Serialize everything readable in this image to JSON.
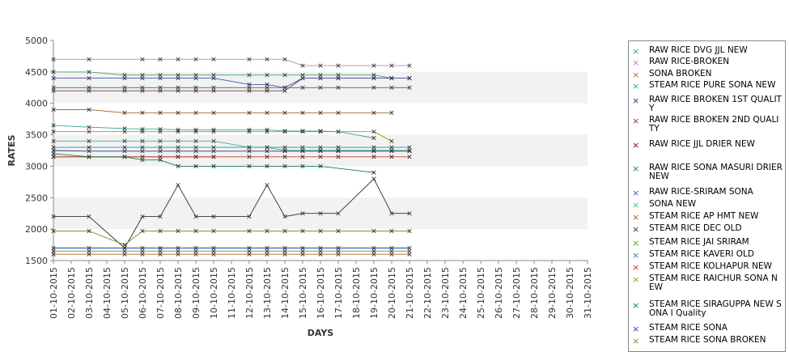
{
  "chart_data": {
    "type": "line",
    "xlabel": "DAYS",
    "ylabel": "RATES",
    "ylim": [
      1500,
      5000
    ],
    "yticks": [
      1500,
      2000,
      2500,
      3000,
      3500,
      4000,
      4500,
      5000
    ],
    "grid": "alternating horizontal bands",
    "legend_position": "right",
    "categories": [
      "01-10-2015",
      "02-10-2015",
      "03-10-2015",
      "04-10-2015",
      "05-10-2015",
      "06-10-2015",
      "07-10-2015",
      "08-10-2015",
      "09-10-2015",
      "10-10-2015",
      "11-10-2015",
      "12-10-2015",
      "13-10-2015",
      "14-10-2015",
      "15-10-2015",
      "16-10-2015",
      "17-10-2015",
      "18-10-2015",
      "19-10-2015",
      "20-10-2015",
      "21-10-2015",
      "22-10-2015",
      "23-10-2015",
      "24-10-2015",
      "25-10-2015",
      "26-10-2015",
      "27-10-2015",
      "28-10-2015",
      "29-10-2015",
      "30-10-2015",
      "31-10-2015"
    ],
    "series": [
      {
        "name": "RAW RICE DVG JJL NEW",
        "color": "#3f9f6f",
        "values": [
          4500,
          null,
          4500,
          null,
          4450,
          4450,
          4450,
          4450,
          4450,
          4450,
          null,
          4450,
          4450,
          4450,
          4450,
          4450,
          4450,
          null,
          4450,
          4400,
          4400,
          null,
          null,
          null,
          null,
          null,
          null,
          null,
          null,
          null,
          null
        ]
      },
      {
        "name": "RAW RICE-BROKEN",
        "color": "#c080c0",
        "values": [
          4700,
          null,
          4700,
          null,
          null,
          4700,
          4700,
          4700,
          4700,
          4700,
          null,
          4700,
          4700,
          4700,
          4600,
          4600,
          4600,
          null,
          4600,
          4600,
          4600,
          null,
          null,
          null,
          null,
          null,
          null,
          null,
          null,
          null,
          null
        ]
      },
      {
        "name": "SONA BROKEN",
        "color": "#a07030",
        "values": [
          3900,
          null,
          3900,
          null,
          3850,
          3850,
          3850,
          3850,
          3850,
          3850,
          null,
          3850,
          3850,
          3850,
          3850,
          3850,
          3850,
          null,
          3850,
          3850,
          null,
          null,
          null,
          null,
          null,
          null,
          null,
          null,
          null,
          null,
          null
        ]
      },
      {
        "name": "STEAM RICE PURE SONA NEW",
        "color": "#30a8a0",
        "values": [
          3650,
          null,
          3620,
          null,
          3600,
          3590,
          3590,
          3580,
          3580,
          3580,
          null,
          3580,
          3580,
          3560,
          3560,
          3560,
          3550,
          null,
          3450,
          null,
          null,
          null,
          null,
          null,
          null,
          null,
          null,
          null,
          null,
          null,
          null
        ]
      },
      {
        "name": "RAW RICE BROKEN 1ST QUALITY",
        "color": "#303080",
        "values": [
          3250,
          null,
          3240,
          null,
          3240,
          3240,
          3240,
          3240,
          3240,
          3240,
          null,
          3240,
          3240,
          3240,
          3240,
          3240,
          3240,
          null,
          3240,
          3240,
          3240,
          null,
          null,
          null,
          null,
          null,
          null,
          null,
          null,
          null,
          null
        ]
      },
      {
        "name": "RAW RICE BROKEN 2ND QUALITY",
        "color": "#903040",
        "values": [
          4200,
          null,
          4200,
          null,
          4200,
          4200,
          4200,
          4200,
          4200,
          4200,
          null,
          4200,
          4200,
          4200,
          4400,
          4400,
          4400,
          null,
          4400,
          4400,
          4400,
          null,
          null,
          null,
          null,
          null,
          null,
          null,
          null,
          null,
          null
        ]
      },
      {
        "name": "RAW RICE JJL DRIER NEW",
        "color": "#800020",
        "values": [
          3150,
          null,
          3150,
          null,
          3150,
          null,
          null,
          3150,
          3150,
          3150,
          null,
          null,
          null,
          null,
          null,
          null,
          null,
          null,
          null,
          null,
          null,
          null,
          null,
          null,
          null,
          null,
          null,
          null,
          null,
          null,
          null
        ]
      },
      {
        "name": "RAW RICE SONA MASURI DRIER NEW",
        "color": "#208040",
        "values": [
          4250,
          null,
          4250,
          null,
          4250,
          4250,
          4250,
          4250,
          4250,
          4250,
          null,
          4250,
          4250,
          4250,
          4250,
          4250,
          4250,
          null,
          4250,
          4250,
          4250,
          null,
          null,
          null,
          null,
          null,
          null,
          null,
          null,
          null,
          null
        ]
      },
      {
        "name": "RAW RICE-SRIRAM SONA",
        "color": "#5050b0",
        "values": [
          4400,
          null,
          4400,
          null,
          4400,
          4400,
          4400,
          4400,
          4400,
          4400,
          null,
          4300,
          4300,
          4250,
          4400,
          4400,
          4400,
          null,
          4400,
          4400,
          4400,
          null,
          null,
          null,
          null,
          null,
          null,
          null,
          null,
          null,
          null
        ]
      },
      {
        "name": "SONA NEW",
        "color": "#40b090",
        "values": [
          3400,
          null,
          3400,
          null,
          3400,
          3400,
          3400,
          3400,
          3400,
          3400,
          null,
          3300,
          3300,
          3250,
          3250,
          3250,
          3250,
          null,
          3250,
          3250,
          3250,
          null,
          null,
          null,
          null,
          null,
          null,
          null,
          null,
          null,
          null
        ]
      },
      {
        "name": "STEAM RICE AP HMT NEW",
        "color": "#a06020",
        "values": [
          1600,
          null,
          1600,
          null,
          1600,
          1600,
          1600,
          1600,
          1600,
          1600,
          null,
          1600,
          1600,
          1600,
          1600,
          1600,
          1600,
          null,
          1600,
          1600,
          1600,
          null,
          null,
          null,
          null,
          null,
          null,
          null,
          null,
          null,
          null
        ]
      },
      {
        "name": "STEAM RICE DEC OLD",
        "color": "#303030",
        "values": [
          2200,
          null,
          2200,
          null,
          1700,
          2200,
          2200,
          2700,
          2200,
          2200,
          null,
          2200,
          2700,
          2200,
          2250,
          2250,
          2250,
          null,
          2800,
          2250,
          2250,
          null,
          null,
          null,
          null,
          null,
          null,
          null,
          null,
          null,
          null
        ]
      },
      {
        "name": "STEAM RICE JAI SRIRAM",
        "color": "#60a020",
        "values": [
          1970,
          null,
          1970,
          null,
          1750,
          1970,
          1970,
          1970,
          1970,
          1970,
          null,
          1970,
          1970,
          1970,
          1970,
          1970,
          1970,
          null,
          1970,
          1970,
          1970,
          null,
          null,
          null,
          null,
          null,
          null,
          null,
          null,
          null,
          null
        ]
      },
      {
        "name": "STEAM RICE KAVERI OLD",
        "color": "#2090b0",
        "values": [
          3300,
          null,
          3300,
          null,
          3300,
          3300,
          3300,
          3300,
          3300,
          3300,
          null,
          3300,
          3300,
          3300,
          3300,
          3300,
          3300,
          null,
          3300,
          3300,
          3300,
          null,
          null,
          null,
          null,
          null,
          null,
          null,
          null,
          null,
          null
        ]
      },
      {
        "name": "STEAM RICE KOLHAPUR NEW",
        "color": "#c04030",
        "values": [
          3150,
          null,
          3150,
          null,
          3150,
          3150,
          3150,
          3150,
          3150,
          3150,
          null,
          3150,
          3150,
          3150,
          3150,
          3150,
          3150,
          null,
          3150,
          3150,
          3150,
          null,
          null,
          null,
          null,
          null,
          null,
          null,
          null,
          null,
          null
        ]
      },
      {
        "name": "STEAM RICE RAICHUR SONA NEW",
        "color": "#90a000",
        "values": [
          3550,
          null,
          3550,
          null,
          3550,
          3550,
          3550,
          3550,
          3550,
          3550,
          null,
          3550,
          3550,
          3550,
          3550,
          3550,
          3550,
          null,
          3550,
          3400,
          null,
          null,
          null,
          null,
          null,
          null,
          null,
          null,
          null,
          null,
          null
        ]
      },
      {
        "name": "STEAM RICE SIRAGUPPA NEW SONA I Quality",
        "color": "#108040",
        "values": [
          3200,
          null,
          3150,
          null,
          3150,
          3100,
          3100,
          3000,
          3000,
          3000,
          null,
          3000,
          3000,
          3000,
          3000,
          3000,
          null,
          null,
          2900,
          null,
          null,
          null,
          null,
          null,
          null,
          null,
          null,
          null,
          null,
          null,
          null
        ]
      },
      {
        "name": "STEAM RICE SONA",
        "color": "#2040c0",
        "values": [
          1700,
          null,
          1700,
          null,
          1700,
          1700,
          1700,
          1700,
          1700,
          1700,
          null,
          1700,
          1700,
          1700,
          1700,
          1700,
          1700,
          null,
          1700,
          1700,
          1700,
          null,
          null,
          null,
          null,
          null,
          null,
          null,
          null,
          null,
          null
        ]
      },
      {
        "name": "STEAM RICE SONA BROKEN",
        "color": "#50a020",
        "values": [
          1650,
          null,
          1650,
          null,
          1650,
          1650,
          1650,
          1650,
          1650,
          1650,
          null,
          1650,
          1650,
          1650,
          1650,
          1650,
          1650,
          null,
          1650,
          1650,
          1650,
          null,
          null,
          null,
          null,
          null,
          null,
          null,
          null,
          null,
          null
        ]
      }
    ]
  }
}
